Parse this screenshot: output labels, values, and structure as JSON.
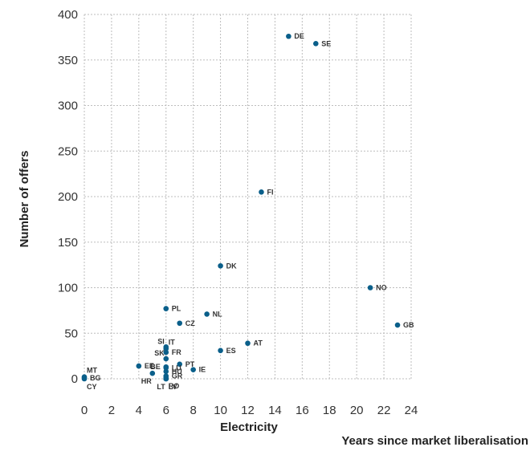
{
  "chart_data": {
    "type": "scatter",
    "xlabel": "Electricity",
    "ylabel": "Number of offers",
    "x_axis_note": "Years since market liberalisation",
    "xlim": [
      0,
      24
    ],
    "ylim": [
      0,
      400
    ],
    "x_ticks": [
      "0",
      "2",
      "4",
      "6",
      "8",
      "10",
      "12",
      "14",
      "16",
      "18",
      "20",
      "22",
      "24"
    ],
    "y_ticks": [
      "0",
      "50",
      "100",
      "150",
      "200",
      "250",
      "300",
      "350",
      "400"
    ],
    "grid": true,
    "point_color": "#0a5f8a",
    "points": [
      {
        "label": "DE",
        "x": 15,
        "y": 376,
        "pos": "r"
      },
      {
        "label": "SE",
        "x": 17,
        "y": 368,
        "pos": "r"
      },
      {
        "label": "FI",
        "x": 13,
        "y": 205,
        "pos": "r"
      },
      {
        "label": "DK",
        "x": 10,
        "y": 124,
        "pos": "r"
      },
      {
        "label": "NO",
        "x": 21,
        "y": 100,
        "pos": "r"
      },
      {
        "label": "PL",
        "x": 6,
        "y": 77,
        "pos": "r"
      },
      {
        "label": "NL",
        "x": 9,
        "y": 71,
        "pos": "r"
      },
      {
        "label": "CZ",
        "x": 7,
        "y": 61,
        "pos": "r"
      },
      {
        "label": "GB",
        "x": 23,
        "y": 59,
        "pos": "r"
      },
      {
        "label": "AT",
        "x": 12,
        "y": 39,
        "pos": "r"
      },
      {
        "label": "SI",
        "x": 6,
        "y": 35,
        "pos": "tl"
      },
      {
        "label": "IT",
        "x": 6,
        "y": 33,
        "pos": "tr"
      },
      {
        "label": "ES",
        "x": 10,
        "y": 31,
        "pos": "r"
      },
      {
        "label": "FR",
        "x": 6,
        "y": 29,
        "pos": "r"
      },
      {
        "label": "SK",
        "x": 6,
        "y": 22,
        "pos": "tl"
      },
      {
        "label": "PT",
        "x": 7,
        "y": 16,
        "pos": "r"
      },
      {
        "label": "EE",
        "x": 4,
        "y": 14,
        "pos": "r"
      },
      {
        "label": "BE",
        "x": 6,
        "y": 13,
        "pos": "l"
      },
      {
        "label": "LU",
        "x": 6,
        "y": 12,
        "pos": "r"
      },
      {
        "label": "IE",
        "x": 8,
        "y": 10,
        "pos": "r"
      },
      {
        "label": "HU",
        "x": 6,
        "y": 8,
        "pos": "r"
      },
      {
        "label": "HR",
        "x": 5,
        "y": 6,
        "pos": "bl"
      },
      {
        "label": "GR",
        "x": 6,
        "y": 3,
        "pos": "r"
      },
      {
        "label": "RO",
        "x": 6,
        "y": 1,
        "pos": "br"
      },
      {
        "label": "LT",
        "x": 6,
        "y": 0,
        "pos": "bl"
      },
      {
        "label": "LV",
        "x": 6,
        "y": 0,
        "pos": "br"
      },
      {
        "label": "MT",
        "x": 0,
        "y": 2,
        "pos": "tr"
      },
      {
        "label": "BG",
        "x": 0,
        "y": 1,
        "pos": "r"
      },
      {
        "label": "CY",
        "x": 0,
        "y": 0,
        "pos": "br"
      }
    ]
  }
}
